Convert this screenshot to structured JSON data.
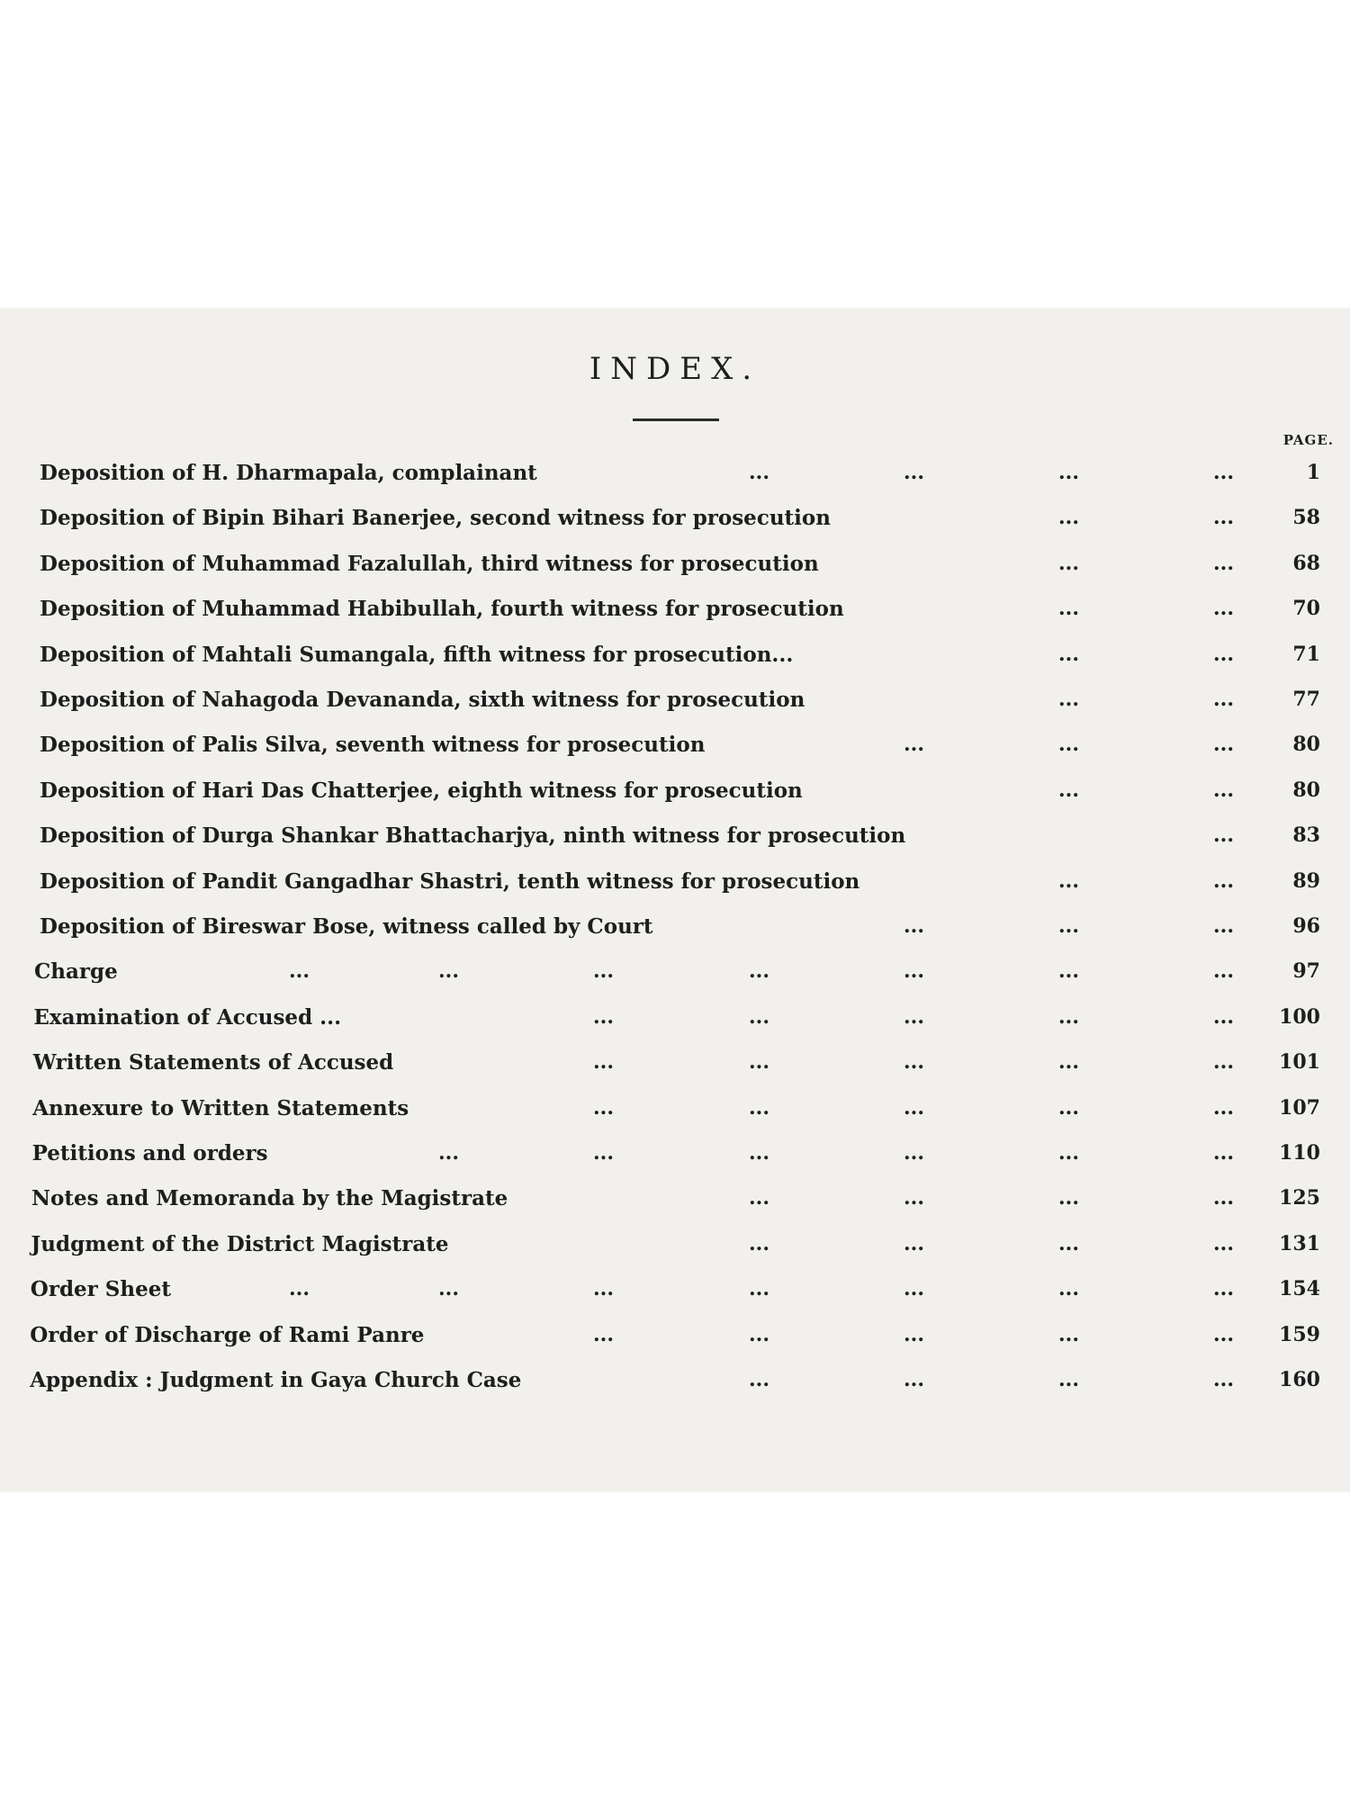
{
  "title": "INDEX.",
  "page_header": "PAGE.",
  "leader": "...",
  "entries": [
    {
      "label": "Deposition of H. Dharmapala, complainant",
      "page": "1"
    },
    {
      "label": "Deposition of Bipin Bihari Banerjee, second witness for prosecution",
      "page": "58"
    },
    {
      "label": "Deposition of Muhammad Fazalullah, third witness for prosecution",
      "page": "68"
    },
    {
      "label": "Deposition of Muhammad Habibullah, fourth witness for  prosecution",
      "page": "70"
    },
    {
      "label": "Deposition of Mahtali Sumangala, fifth witness for prosecution...",
      "page": "71"
    },
    {
      "label": "Deposition of Nahagoda Devananda, sixth witness for prosecution",
      "page": "77"
    },
    {
      "label": "Deposition of Palis Silva, seventh witness for prosecution",
      "page": "80"
    },
    {
      "label": "Deposition of Hari Das Chatterjee, eighth witness for prosecution",
      "page": "80"
    },
    {
      "label": "Deposition of Durga Shankar Bhattacharjya, ninth witness for prosecution",
      "page": "83"
    },
    {
      "label": "Deposition of Pandit Gangadhar Shastri, tenth witness for prosecution",
      "page": "89"
    },
    {
      "label": "Deposition of Bireswar Bose, witness called by Court",
      "page": "96"
    },
    {
      "label": "Charge",
      "page": "97"
    },
    {
      "label": "Examination of Accused ...",
      "page": "100"
    },
    {
      "label": "Written Statements of Accused",
      "page": "101"
    },
    {
      "label": "Annexure to Written Statements",
      "page": "107"
    },
    {
      "label": "Petitions and orders",
      "page": "110"
    },
    {
      "label": "Notes and Memoranda by the Magistrate",
      "page": "125"
    },
    {
      "label": "Judgment of the District Magistrate",
      "page": "131"
    },
    {
      "label": "Order Sheet",
      "page": "154"
    },
    {
      "label": "Order of Discharge of Rami Panre",
      "page": "159"
    },
    {
      "label": "Appendix : Judgment in Gaya Church Case",
      "page": "160"
    }
  ]
}
